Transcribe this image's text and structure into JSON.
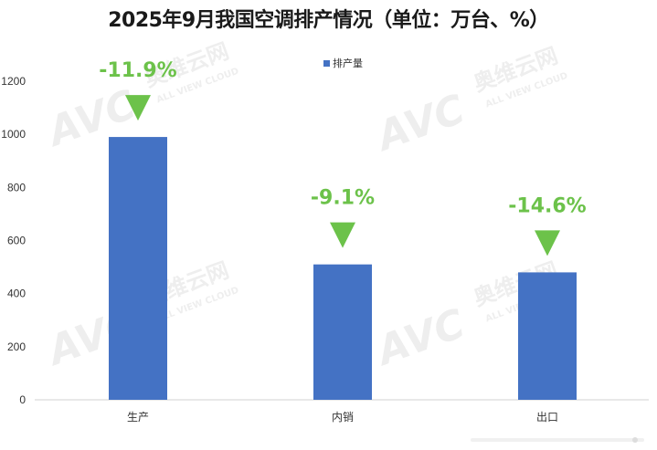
{
  "chart_data": {
    "type": "bar",
    "title": "2025年9月我国空调排产情况（单位：万台、%）",
    "categories": [
      "生产",
      "内销",
      "出口"
    ],
    "series": [
      {
        "name": "排产量",
        "values": [
          990,
          510,
          480
        ],
        "color": "#4472c4"
      }
    ],
    "annotations": [
      "-11.9%",
      "-9.1%",
      "-14.6%"
    ],
    "annotation_color": "#6cc24a",
    "ylim": [
      0,
      1200
    ],
    "yticks": [
      0,
      200,
      400,
      600,
      800,
      1000,
      1200
    ],
    "legend_position": "top",
    "grid": false
  },
  "watermark": {
    "logo_text": "AVC",
    "cn_text": "奥维云网",
    "en_text": "ALL VIEW CLOUD"
  }
}
